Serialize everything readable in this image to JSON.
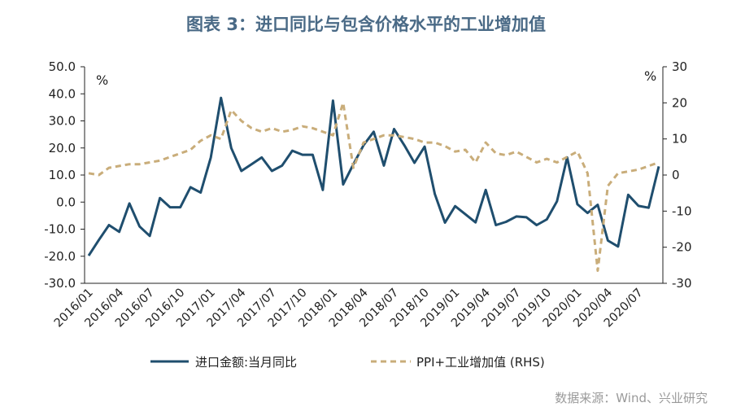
{
  "title": "图表 3：进口同比与包含价格水平的工业增加值",
  "source": "数据来源：Wind、兴业研究",
  "chart_data": {
    "type": "line",
    "title": "图表 3：进口同比与包含价格水平的工业增加值",
    "left_unit": "%",
    "right_unit": "%",
    "ylim_left": [
      -30,
      50
    ],
    "ylim_right": [
      -30,
      30
    ],
    "left_ticks": [
      "50.0",
      "40.0",
      "30.0",
      "20.0",
      "10.0",
      "0.0",
      "-10.0",
      "-20.0",
      "-30.0"
    ],
    "left_tick_values": [
      50,
      40,
      30,
      20,
      10,
      0,
      -10,
      -20,
      -30
    ],
    "right_ticks": [
      "30",
      "20",
      "10",
      "0",
      "-10",
      "-20",
      "-30"
    ],
    "right_tick_values": [
      30,
      20,
      10,
      0,
      -10,
      -20,
      -30
    ],
    "x_labels": [
      "2016/01",
      "2016/04",
      "2016/07",
      "2016/10",
      "2017/01",
      "2017/04",
      "2017/07",
      "2017/10",
      "2018/01",
      "2018/04",
      "2018/07",
      "2018/10",
      "2019/01",
      "2019/04",
      "2019/07",
      "2019/10",
      "2020/01",
      "2020/04",
      "2020/07"
    ],
    "x_label_every": 3,
    "n_months": 57,
    "series": [
      {
        "name": "进口金额:当月同比",
        "axis": "left",
        "color": "#1f4e6e",
        "style": "solid",
        "values": [
          -19.8,
          -14,
          -8.5,
          -11,
          -0.5,
          -9,
          -12.5,
          1.5,
          -1.9,
          -1.9,
          5.5,
          3.5,
          16.5,
          38.5,
          20,
          11.5,
          14,
          16.5,
          11.5,
          13.5,
          19,
          17.5,
          17.5,
          4.5,
          37.5,
          6.5,
          14,
          21,
          26,
          13.5,
          27,
          21,
          14.5,
          20.5,
          3,
          -7.6,
          -1.5,
          -4.5,
          -7.5,
          4.5,
          -8.5,
          -7.3,
          -5.3,
          -5.6,
          -8.5,
          -6.4,
          0.3,
          16.5,
          -0.8,
          -4,
          -1,
          -14.2,
          -16.4,
          2.7,
          -1.4,
          -2.1,
          13.2
        ]
      },
      {
        "name": "PPI+工业增加值 (RHS)",
        "axis": "right",
        "color": "#c9ad7a",
        "style": "dashed",
        "values": [
          0.5,
          0,
          2,
          2.5,
          3,
          3,
          3.5,
          4,
          5,
          6,
          7,
          9.5,
          11,
          10,
          18,
          15,
          13,
          12,
          13,
          12,
          12.5,
          13.5,
          13,
          12,
          11,
          20,
          2,
          9,
          10,
          11,
          11,
          10.5,
          10,
          9,
          9,
          8,
          6.5,
          7,
          3.5,
          9,
          6,
          5.5,
          6.5,
          5,
          3.5,
          4.5,
          3.5,
          5,
          6.5,
          0.5,
          -26.5,
          -3,
          0.5,
          1,
          1.5,
          2.5,
          3.5
        ]
      }
    ]
  },
  "legend": {
    "series1": "进口金额:当月同比",
    "series2": "PPI+工业增加值 (RHS)"
  }
}
